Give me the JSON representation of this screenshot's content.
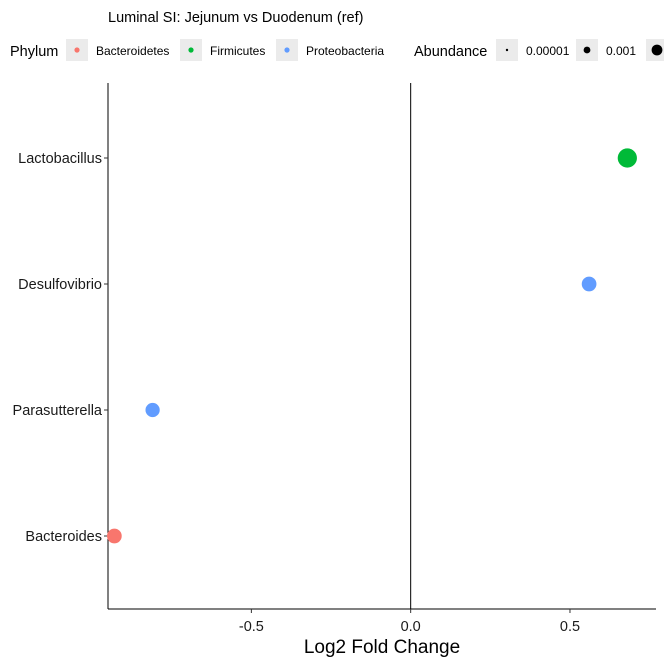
{
  "chart_data": {
    "type": "scatter",
    "title": "Luminal SI: Jejunum vs Duodenum (ref)",
    "xlabel": "Log2 Fold Change",
    "ylabel": "",
    "xlim": [
      -0.95,
      0.77
    ],
    "x_ticks": [
      -0.5,
      0.0,
      0.5
    ],
    "x_tick_labels": [
      "-0.5",
      "0.0",
      "0.5"
    ],
    "categories": [
      "Lactobacillus",
      "Desulfovibrio",
      "Parasutterella",
      "Bacteroides"
    ],
    "grid": false,
    "reference_line_x": 0,
    "legend_position": "top",
    "legend": {
      "phylum": {
        "title": "Phylum",
        "entries": [
          {
            "label": "Bacteroidetes",
            "color": "#F8766D"
          },
          {
            "label": "Firmicutes",
            "color": "#00BA38"
          },
          {
            "label": "Proteobacteria",
            "color": "#619CFF"
          }
        ]
      },
      "abundance": {
        "title": "Abundance",
        "entries": [
          {
            "label": "0.00001",
            "value": 1e-05
          },
          {
            "label": "0.001",
            "value": 0.001
          },
          {
            "label": "",
            "value": 0.1
          }
        ]
      }
    },
    "points": [
      {
        "taxon": "Lactobacillus",
        "x": 0.68,
        "phylum": "Firmicutes",
        "abundance": 0.2,
        "color": "#00BA38"
      },
      {
        "taxon": "Desulfovibrio",
        "x": 0.56,
        "phylum": "Proteobacteria",
        "abundance": 0.003,
        "color": "#619CFF"
      },
      {
        "taxon": "Parasutterella",
        "x": -0.81,
        "phylum": "Proteobacteria",
        "abundance": 0.002,
        "color": "#619CFF"
      },
      {
        "taxon": "Bacteroides",
        "x": -0.93,
        "phylum": "Bacteroidetes",
        "abundance": 0.003,
        "color": "#F8766D"
      }
    ]
  }
}
